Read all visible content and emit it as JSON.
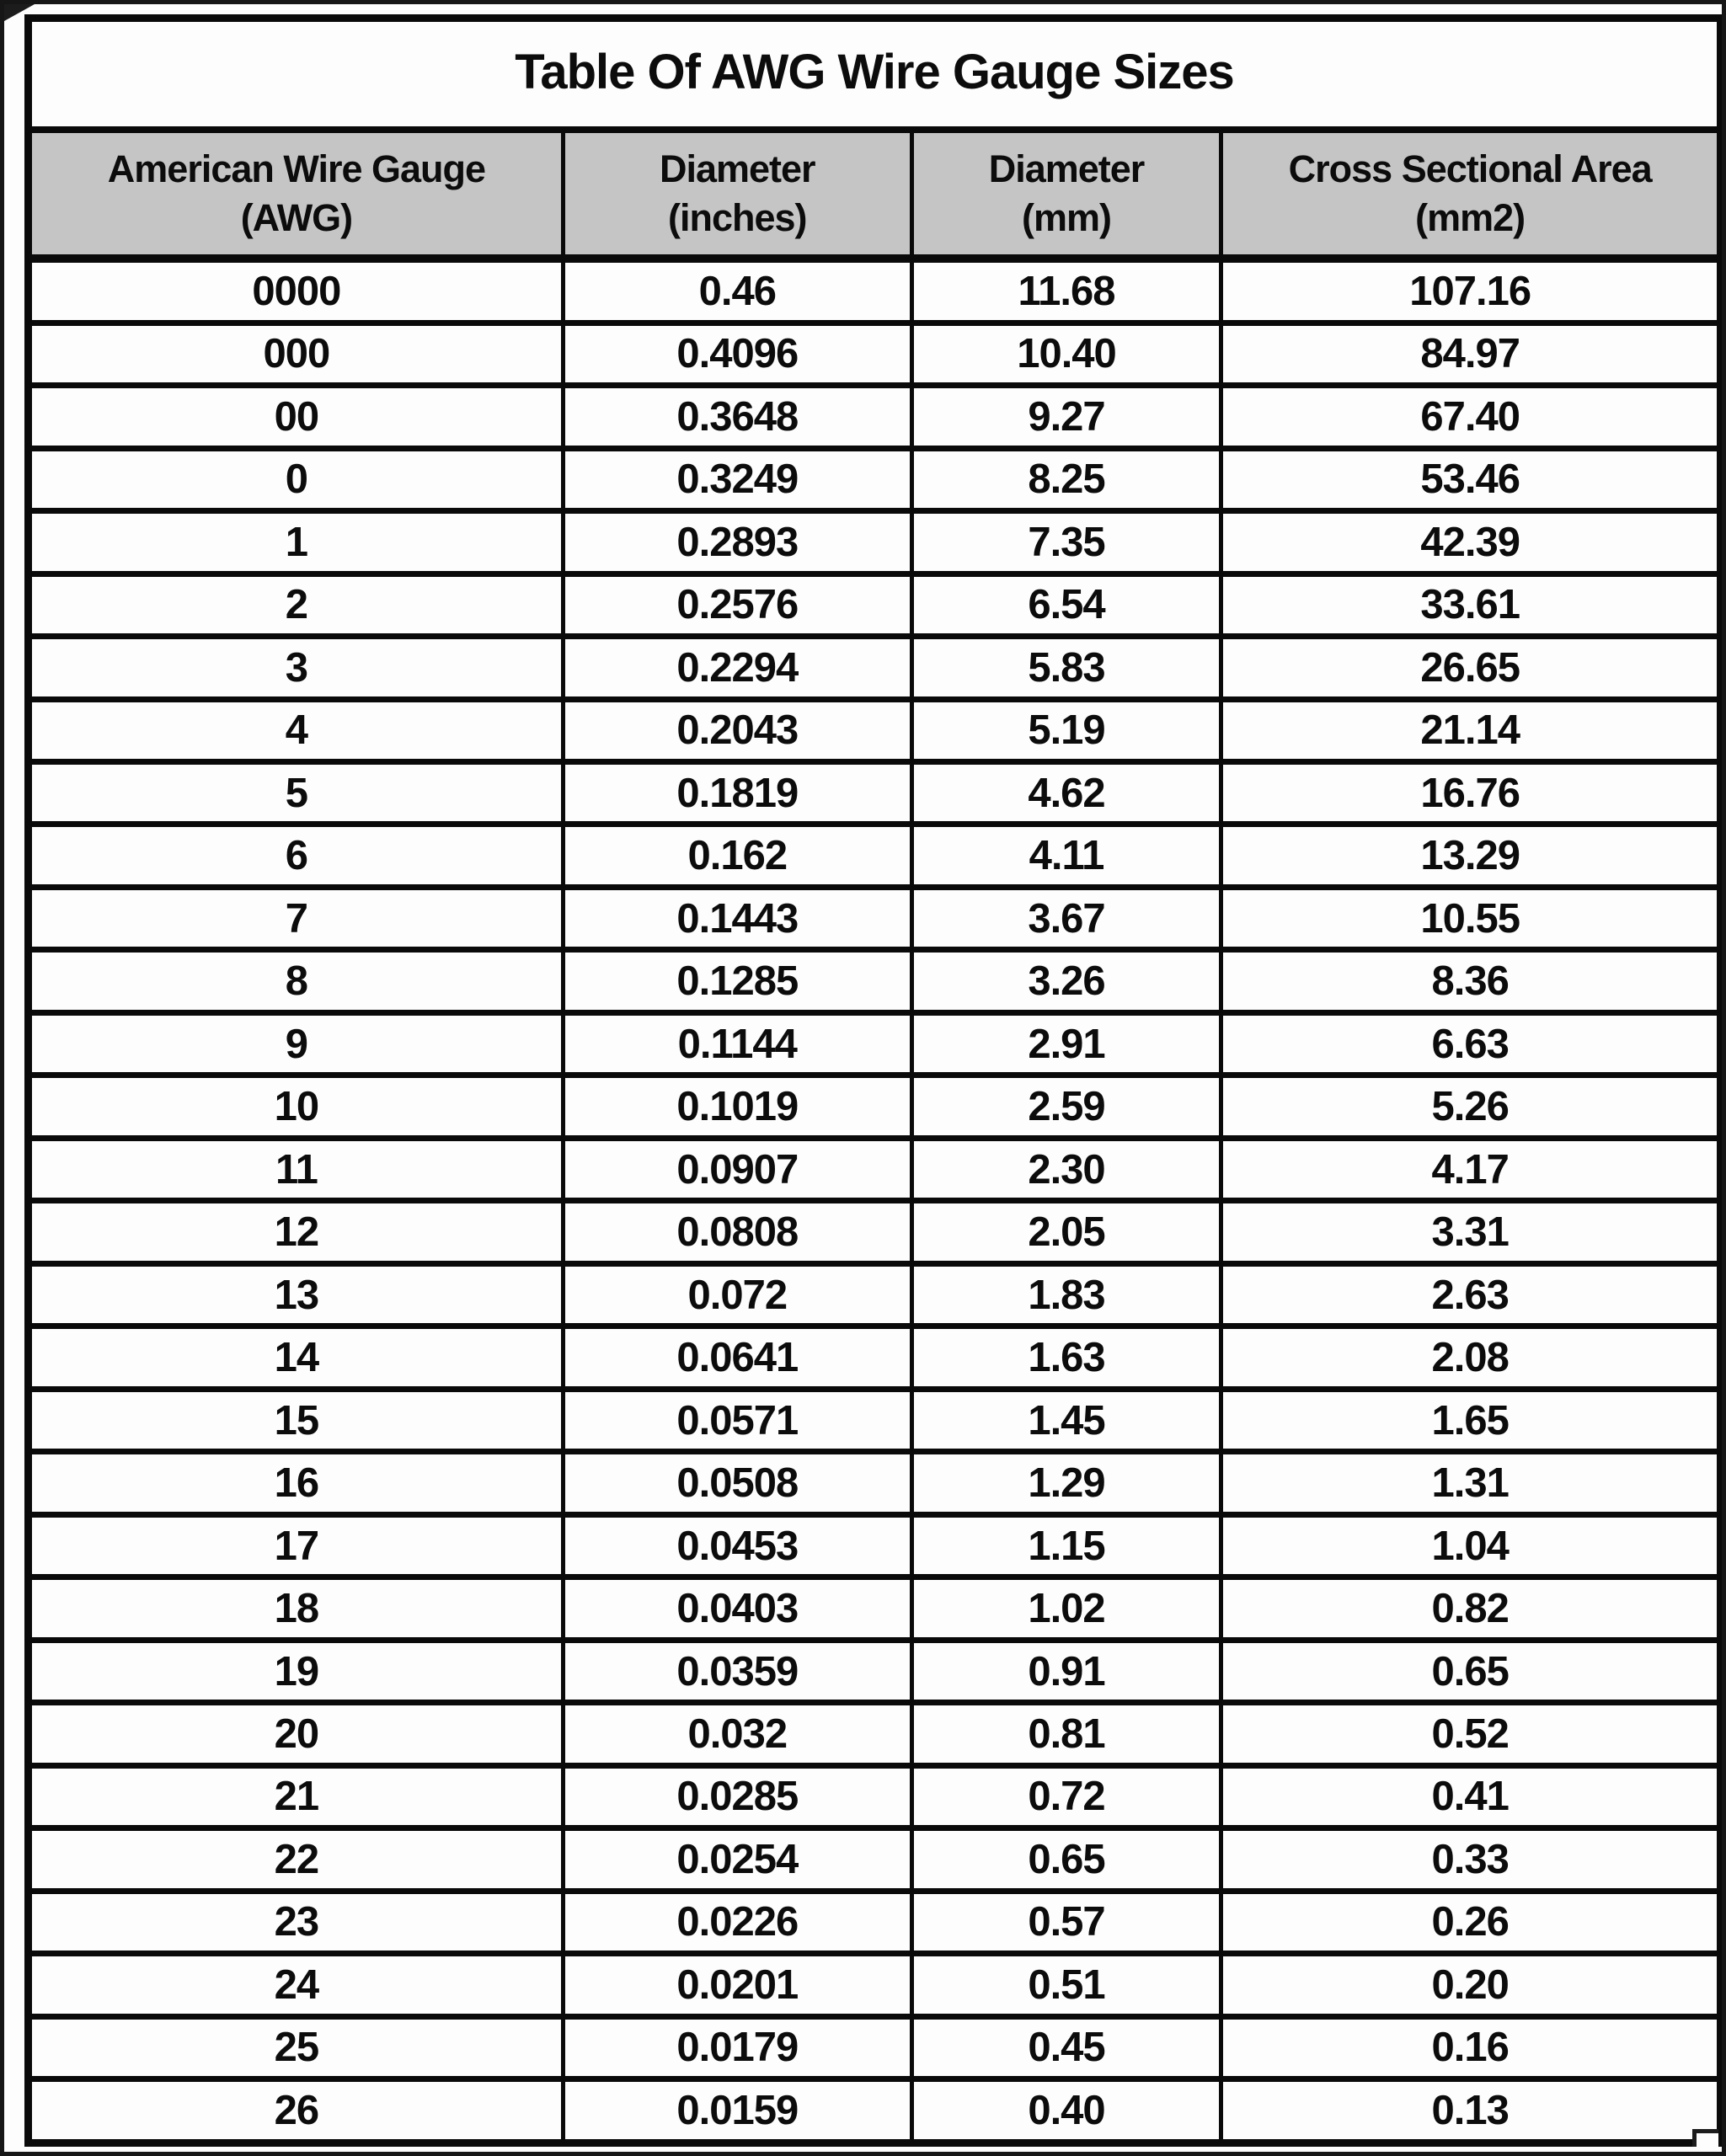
{
  "page": {
    "title": "Table Of AWG Wire Gauge Sizes"
  },
  "table": {
    "headers": [
      {
        "line1": "American Wire Gauge",
        "line2": "(AWG)"
      },
      {
        "line1": "Diameter",
        "line2": "(inches)"
      },
      {
        "line1": "Diameter",
        "line2": "(mm)"
      },
      {
        "line1": "Cross Sectional Area",
        "line2": "(mm2)"
      }
    ],
    "rows": [
      [
        "0000",
        "0.46",
        "11.68",
        "107.16"
      ],
      [
        "000",
        "0.4096",
        "10.40",
        "84.97"
      ],
      [
        "00",
        "0.3648",
        "9.27",
        "67.40"
      ],
      [
        "0",
        "0.3249",
        "8.25",
        "53.46"
      ],
      [
        "1",
        "0.2893",
        "7.35",
        "42.39"
      ],
      [
        "2",
        "0.2576",
        "6.54",
        "33.61"
      ],
      [
        "3",
        "0.2294",
        "5.83",
        "26.65"
      ],
      [
        "4",
        "0.2043",
        "5.19",
        "21.14"
      ],
      [
        "5",
        "0.1819",
        "4.62",
        "16.76"
      ],
      [
        "6",
        "0.162",
        "4.11",
        "13.29"
      ],
      [
        "7",
        "0.1443",
        "3.67",
        "10.55"
      ],
      [
        "8",
        "0.1285",
        "3.26",
        "8.36"
      ],
      [
        "9",
        "0.1144",
        "2.91",
        "6.63"
      ],
      [
        "10",
        "0.1019",
        "2.59",
        "5.26"
      ],
      [
        "11",
        "0.0907",
        "2.30",
        "4.17"
      ],
      [
        "12",
        "0.0808",
        "2.05",
        "3.31"
      ],
      [
        "13",
        "0.072",
        "1.83",
        "2.63"
      ],
      [
        "14",
        "0.0641",
        "1.63",
        "2.08"
      ],
      [
        "15",
        "0.0571",
        "1.45",
        "1.65"
      ],
      [
        "16",
        "0.0508",
        "1.29",
        "1.31"
      ],
      [
        "17",
        "0.0453",
        "1.15",
        "1.04"
      ],
      [
        "18",
        "0.0403",
        "1.02",
        "0.82"
      ],
      [
        "19",
        "0.0359",
        "0.91",
        "0.65"
      ],
      [
        "20",
        "0.032",
        "0.81",
        "0.52"
      ],
      [
        "21",
        "0.0285",
        "0.72",
        "0.41"
      ],
      [
        "22",
        "0.0254",
        "0.65",
        "0.33"
      ],
      [
        "23",
        "0.0226",
        "0.57",
        "0.26"
      ],
      [
        "24",
        "0.0201",
        "0.51",
        "0.20"
      ],
      [
        "25",
        "0.0179",
        "0.45",
        "0.16"
      ],
      [
        "26",
        "0.0159",
        "0.40",
        "0.13"
      ]
    ]
  },
  "colors": {
    "header_bg": "#c5c5c5",
    "border": "#0a0a0a",
    "page_bg": "#fdfdfd",
    "text": "#0c0c0c"
  }
}
